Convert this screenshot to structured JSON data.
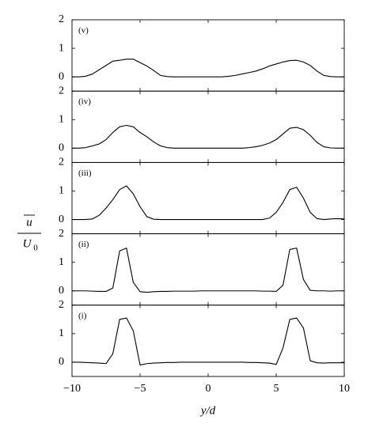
{
  "ylabel": {
    "numerator": "u",
    "denominator": "U",
    "denominator_subscript": "0"
  },
  "chart_data": [
    {
      "type": "line",
      "label": "(v)",
      "color": "#000000",
      "x": [
        -10,
        -9.5,
        -9,
        -8.5,
        -8,
        -7.5,
        -7,
        -6.5,
        -6,
        -5.5,
        -5,
        -4.5,
        -4,
        -3.5,
        -3,
        -2.5,
        -2,
        -1.5,
        -1,
        -0.5,
        0,
        0.5,
        1,
        1.5,
        2,
        2.5,
        3,
        3.5,
        4,
        4.5,
        5,
        5.5,
        6,
        6.5,
        7,
        7.5,
        8,
        8.5,
        9,
        9.5,
        10
      ],
      "values": [
        0,
        0,
        0.02,
        0.1,
        0.25,
        0.4,
        0.55,
        0.58,
        0.62,
        0.62,
        0.5,
        0.38,
        0.22,
        0.05,
        0.01,
        0,
        0,
        0,
        0,
        0,
        0,
        0,
        0,
        0.02,
        0.05,
        0.1,
        0.15,
        0.2,
        0.28,
        0.38,
        0.45,
        0.52,
        0.57,
        0.58,
        0.52,
        0.4,
        0.2,
        0.05,
        0.01,
        0,
        0
      ],
      "xlim": [
        -10,
        10
      ],
      "xticks": [
        -10,
        -5,
        0,
        5,
        10
      ],
      "ylim": [
        -0.5,
        2
      ],
      "yticks": [
        0,
        1,
        2
      ]
    },
    {
      "type": "line",
      "label": "(iv)",
      "color": "#000000",
      "x": [
        -10,
        -9.5,
        -9,
        -8.5,
        -8,
        -7.5,
        -7,
        -6.5,
        -6,
        -5.5,
        -5,
        -4.5,
        -4,
        -3.5,
        -3,
        -2.5,
        -2,
        -1.5,
        -1,
        -0.5,
        0,
        0.5,
        1,
        1.5,
        2,
        2.5,
        3,
        3.5,
        4,
        4.5,
        5,
        5.5,
        6,
        6.5,
        7,
        7.5,
        8,
        8.5,
        9,
        9.5,
        10
      ],
      "values": [
        0,
        0,
        0.02,
        0.08,
        0.15,
        0.3,
        0.55,
        0.75,
        0.8,
        0.75,
        0.55,
        0.4,
        0.22,
        0.08,
        0.02,
        0,
        0,
        0,
        0,
        0,
        0,
        0,
        0,
        0,
        0,
        0,
        0.02,
        0.05,
        0.1,
        0.18,
        0.3,
        0.5,
        0.7,
        0.73,
        0.65,
        0.45,
        0.2,
        0.05,
        0.01,
        0,
        0
      ],
      "xlim": [
        -10,
        10
      ],
      "xticks": [
        -10,
        -5,
        0,
        5,
        10
      ],
      "ylim": [
        -0.5,
        2
      ],
      "yticks": [
        0,
        1,
        2
      ]
    },
    {
      "type": "line",
      "label": "(iii)",
      "color": "#000000",
      "x": [
        -10,
        -9.5,
        -9,
        -8.5,
        -8,
        -7.5,
        -7,
        -6.5,
        -6,
        -5.5,
        -5,
        -4.5,
        -4,
        -3.5,
        -3,
        -2.5,
        -2,
        -1.5,
        -1,
        -0.5,
        0,
        0.5,
        1,
        1.5,
        2,
        2.5,
        3,
        3.5,
        4,
        4.5,
        5,
        5.5,
        6,
        6.5,
        7,
        7.5,
        8,
        8.5,
        9,
        9.5,
        10
      ],
      "values": [
        0,
        0,
        0,
        0.02,
        0.15,
        0.4,
        0.7,
        1.05,
        1.18,
        0.9,
        0.45,
        0.1,
        0.01,
        0,
        0,
        0,
        0,
        0,
        0,
        0,
        0,
        0,
        0,
        0,
        0,
        0,
        0,
        0,
        0,
        0.05,
        0.25,
        0.6,
        1.05,
        1.13,
        0.75,
        0.25,
        0.03,
        0,
        0.02,
        0.03,
        0.02
      ],
      "xlim": [
        -10,
        10
      ],
      "xticks": [
        -10,
        -5,
        0,
        5,
        10
      ],
      "ylim": [
        -0.5,
        2
      ],
      "yticks": [
        0,
        1,
        2
      ]
    },
    {
      "type": "line",
      "label": "(ii)",
      "color": "#000000",
      "x": [
        -10,
        -9.5,
        -9,
        -8.5,
        -8,
        -7.5,
        -7,
        -6.5,
        -6,
        -5.5,
        -5,
        -4.5,
        -4,
        -3.5,
        -3,
        -2.5,
        -2,
        -1.5,
        -1,
        -0.5,
        0,
        0.5,
        1,
        1.5,
        2,
        2.5,
        3,
        3.5,
        4,
        4.5,
        5,
        5.5,
        6,
        6.5,
        7,
        7.5,
        8,
        8.5,
        9,
        9.5,
        10
      ],
      "values": [
        0,
        0,
        0,
        -0.01,
        -0.02,
        -0.02,
        0.1,
        1.4,
        1.5,
        0.3,
        -0.03,
        -0.05,
        -0.03,
        -0.02,
        -0.02,
        -0.01,
        -0.01,
        -0.01,
        -0.01,
        0,
        0,
        0,
        0,
        0,
        0,
        0,
        0,
        0,
        -0.01,
        -0.01,
        -0.02,
        0.2,
        1.45,
        1.5,
        0.4,
        0.02,
        0,
        0,
        -0.01,
        0,
        0
      ],
      "xlim": [
        -10,
        10
      ],
      "xticks": [
        -10,
        -5,
        0,
        5,
        10
      ],
      "ylim": [
        -0.5,
        2
      ],
      "yticks": [
        0,
        1,
        2
      ]
    },
    {
      "type": "line",
      "label": "(i)",
      "color": "#000000",
      "xlabel": "y/d",
      "x": [
        -10,
        -9.5,
        -9,
        -8.5,
        -8,
        -7.5,
        -7,
        -6.5,
        -6,
        -5.5,
        -5,
        -4.5,
        -4,
        -3.5,
        -3,
        -2.5,
        -2,
        -1.5,
        -1,
        -0.5,
        0,
        0.5,
        1,
        1.5,
        2,
        2.5,
        3,
        3.5,
        4,
        4.5,
        5,
        5.5,
        6,
        6.5,
        7,
        7.5,
        8,
        8.5,
        9,
        9.5,
        10
      ],
      "values": [
        0,
        0,
        -0.01,
        -0.02,
        -0.03,
        -0.05,
        0.3,
        1.5,
        1.55,
        1.1,
        -0.1,
        -0.05,
        -0.03,
        -0.02,
        -0.01,
        -0.01,
        0,
        0,
        0,
        0,
        0,
        0,
        0,
        0,
        0,
        0,
        -0.01,
        -0.01,
        -0.02,
        -0.03,
        -0.08,
        0.5,
        1.5,
        1.55,
        1.2,
        0.05,
        -0.02,
        -0.03,
        -0.02,
        -0.02,
        -0.02
      ],
      "xlim": [
        -10,
        10
      ],
      "xticks": [
        {
          "value": -10,
          "label": "−10"
        },
        {
          "value": -5,
          "label": "−5"
        },
        0,
        5,
        10
      ],
      "ylim": [
        -0.5,
        2
      ],
      "yticks": [
        0,
        1,
        2
      ]
    }
  ]
}
